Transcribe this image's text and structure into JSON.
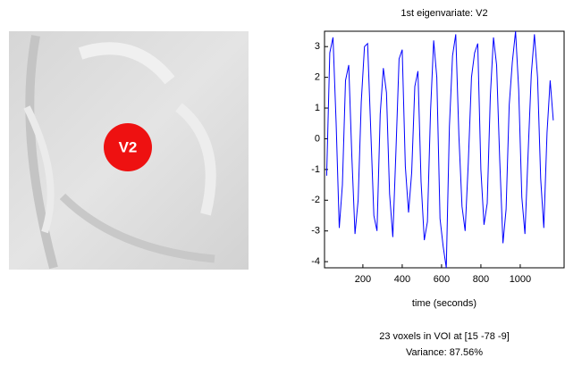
{
  "image": {
    "label": "V2"
  },
  "chart_data": {
    "type": "line",
    "title": "1st eigenvariate: V2",
    "xlabel": "time (seconds)",
    "x": [
      16,
      32,
      48,
      64,
      80,
      96,
      112,
      128,
      144,
      160,
      176,
      192,
      208,
      224,
      240,
      256,
      272,
      288,
      304,
      320,
      336,
      352,
      368,
      384,
      400,
      416,
      432,
      448,
      464,
      480,
      496,
      512,
      528,
      544,
      560,
      576,
      592,
      608,
      624,
      640,
      656,
      672,
      688,
      704,
      720,
      736,
      752,
      768,
      784,
      800,
      816,
      832,
      848,
      864,
      880,
      896,
      912,
      928,
      944,
      960,
      976,
      992,
      1008,
      1024,
      1040,
      1056,
      1072,
      1088,
      1104,
      1120,
      1136,
      1152,
      1168
    ],
    "values": [
      -1.2,
      2.8,
      3.3,
      0.5,
      -2.9,
      -1.5,
      1.9,
      2.4,
      -0.6,
      -3.1,
      -2.0,
      1.2,
      3.0,
      3.1,
      0.3,
      -2.5,
      -3.0,
      0.8,
      2.3,
      1.5,
      -1.8,
      -3.2,
      -0.4,
      2.6,
      2.9,
      -0.9,
      -2.4,
      -1.1,
      1.7,
      2.2,
      -1.4,
      -3.3,
      -2.7,
      0.9,
      3.2,
      2.0,
      -2.6,
      -3.5,
      -4.2,
      0.4,
      2.7,
      3.4,
      0.1,
      -2.2,
      -3.0,
      -0.8,
      2.0,
      2.8,
      3.1,
      -1.0,
      -2.8,
      -2.1,
      1.4,
      3.3,
      2.4,
      -0.7,
      -3.4,
      -2.3,
      1.1,
      2.5,
      3.5,
      1.6,
      -1.9,
      -3.1,
      -0.5,
      2.1,
      3.4,
      2.0,
      -1.3,
      -2.9,
      0.2,
      1.9,
      0.6
    ],
    "color": "#0000ff",
    "xlim": [
      5,
      1223
    ],
    "xticks": [
      200,
      400,
      600,
      800,
      1000
    ],
    "ylim": [
      -4.2,
      3.5
    ],
    "yticks": [
      -4,
      -3,
      -2,
      -1,
      0,
      1,
      2,
      3
    ]
  },
  "caption": {
    "voxels": "23 voxels in VOI at [15 -78  -9]",
    "variance": "Variance: 87.56%"
  }
}
